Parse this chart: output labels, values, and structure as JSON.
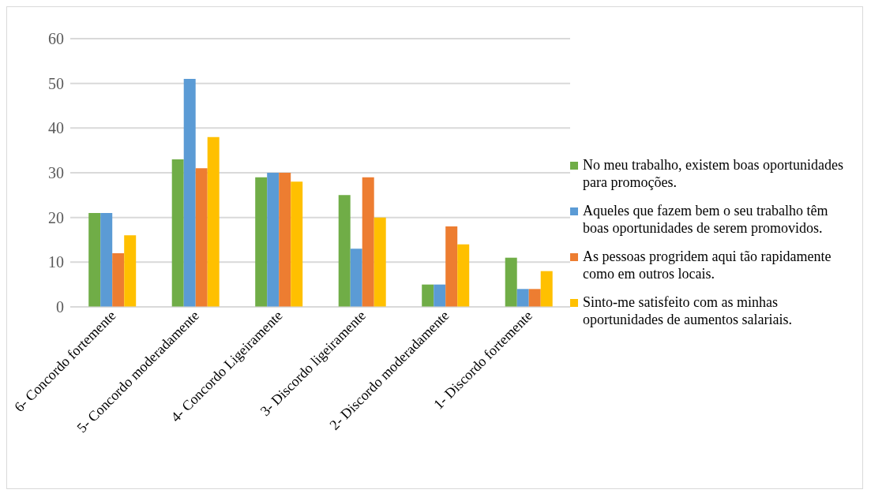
{
  "chart_data": {
    "type": "bar",
    "categories": [
      "6- Concordo fortemente",
      "5- Concordo moderadamente",
      "4- Concordo Ligeiramente",
      "3- Discordo ligeiramente",
      "2- Discordo moderadamente",
      "1- Discordo fortemente"
    ],
    "series": [
      {
        "name": "No meu trabalho, existem boas oportunidades para promoções.",
        "color": "#70ad47",
        "values": [
          21,
          33,
          29,
          25,
          5,
          11
        ]
      },
      {
        "name": "Aqueles que fazem bem o seu trabalho têm boas oportunidades de serem promovidos.",
        "color": "#5b9bd5",
        "values": [
          21,
          51,
          30,
          13,
          5,
          4
        ]
      },
      {
        "name": "As pessoas progridem aqui tão rapidamente como em outros locais.",
        "color": "#ed7d31",
        "values": [
          12,
          31,
          30,
          29,
          18,
          4
        ]
      },
      {
        "name": "Sinto-me satisfeito com as minhas oportunidades de aumentos salariais.",
        "color": "#ffc000",
        "values": [
          16,
          38,
          28,
          20,
          14,
          8
        ]
      }
    ],
    "ylim": [
      0,
      60
    ],
    "yticks": [
      0,
      10,
      20,
      30,
      40,
      50,
      60
    ],
    "grid": "y",
    "legend": "right"
  }
}
